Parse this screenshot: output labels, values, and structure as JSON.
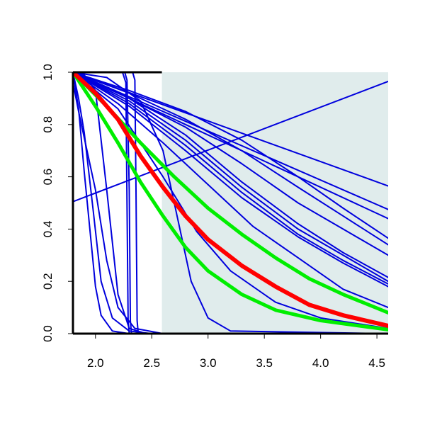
{
  "chart_data": {
    "type": "line",
    "title": "",
    "xlabel": "",
    "ylabel": "",
    "xlim": [
      1.8,
      4.6
    ],
    "ylim": [
      0.0,
      1.0
    ],
    "x_ticks": [
      2.0,
      2.5,
      3.0,
      3.5,
      4.0,
      4.5
    ],
    "x_tick_labels": [
      "2.0",
      "2.5",
      "3.0",
      "3.5",
      "4.0",
      "4.5"
    ],
    "y_ticks": [
      0.0,
      0.2,
      0.4,
      0.6,
      0.8,
      1.0
    ],
    "y_tick_labels": [
      "0.0",
      "0.2",
      "0.4",
      "0.6",
      "0.8",
      "1.0"
    ],
    "grid": false,
    "legend": "none",
    "shaded_region": {
      "x": [
        2.59,
        4.6
      ],
      "y": [
        0.0,
        1.0
      ],
      "color": "#e0ecec"
    },
    "colors": {
      "blue": "#0000dd",
      "red": "#ff0000",
      "green": "#00ee00",
      "axis": "#000000"
    },
    "series": [
      {
        "color": "#0000dd",
        "width": 2,
        "points": [
          [
            1.8,
            0.505
          ],
          [
            4.6,
            0.965
          ]
        ]
      },
      {
        "color": "#0000dd",
        "width": 2,
        "points": [
          [
            1.8,
            1.0
          ],
          [
            4.6,
            0.565
          ]
        ]
      },
      {
        "color": "#0000dd",
        "width": 2,
        "points": [
          [
            1.8,
            1.0
          ],
          [
            4.6,
            0.475
          ]
        ]
      },
      {
        "color": "#0000dd",
        "width": 2,
        "points": [
          [
            1.8,
            1.0
          ],
          [
            4.6,
            0.44
          ]
        ]
      },
      {
        "color": "#0000dd",
        "width": 2,
        "points": [
          [
            1.8,
            1.0
          ],
          [
            2.3,
            0.93
          ],
          [
            2.8,
            0.85
          ],
          [
            3.3,
            0.74
          ],
          [
            3.8,
            0.6
          ],
          [
            4.2,
            0.48
          ],
          [
            4.6,
            0.365
          ]
        ]
      },
      {
        "color": "#0000dd",
        "width": 2,
        "points": [
          [
            1.8,
            1.0
          ],
          [
            2.3,
            0.92
          ],
          [
            2.8,
            0.82
          ],
          [
            3.3,
            0.7
          ],
          [
            3.8,
            0.56
          ],
          [
            4.2,
            0.45
          ],
          [
            4.6,
            0.34
          ]
        ]
      },
      {
        "color": "#0000dd",
        "width": 2,
        "points": [
          [
            1.8,
            1.0
          ],
          [
            2.3,
            0.9
          ],
          [
            2.8,
            0.79
          ],
          [
            3.3,
            0.65
          ],
          [
            3.8,
            0.5
          ],
          [
            4.2,
            0.4
          ],
          [
            4.6,
            0.3
          ]
        ]
      },
      {
        "color": "#0000dd",
        "width": 2,
        "points": [
          [
            1.8,
            1.0
          ],
          [
            2.3,
            0.9
          ],
          [
            2.8,
            0.76
          ],
          [
            3.3,
            0.58
          ],
          [
            3.8,
            0.42
          ],
          [
            4.2,
            0.31
          ],
          [
            4.6,
            0.215
          ]
        ]
      },
      {
        "color": "#0000dd",
        "width": 2,
        "points": [
          [
            1.8,
            1.0
          ],
          [
            2.3,
            0.89
          ],
          [
            2.8,
            0.74
          ],
          [
            3.3,
            0.56
          ],
          [
            3.8,
            0.4
          ],
          [
            4.2,
            0.3
          ],
          [
            4.6,
            0.2
          ]
        ]
      },
      {
        "color": "#0000dd",
        "width": 2,
        "points": [
          [
            1.8,
            1.0
          ],
          [
            2.3,
            0.88
          ],
          [
            2.8,
            0.72
          ],
          [
            3.3,
            0.54
          ],
          [
            3.8,
            0.38
          ],
          [
            4.2,
            0.28
          ],
          [
            4.6,
            0.19
          ]
        ]
      },
      {
        "color": "#0000dd",
        "width": 2,
        "points": [
          [
            1.8,
            1.0
          ],
          [
            2.3,
            0.87
          ],
          [
            2.8,
            0.7
          ],
          [
            3.3,
            0.52
          ],
          [
            3.8,
            0.37
          ],
          [
            4.2,
            0.27
          ],
          [
            4.6,
            0.18
          ]
        ]
      },
      {
        "color": "#0000dd",
        "width": 2,
        "points": [
          [
            1.8,
            1.0
          ],
          [
            2.2,
            0.88
          ],
          [
            2.6,
            0.73
          ],
          [
            3.0,
            0.57
          ],
          [
            3.4,
            0.41
          ],
          [
            3.8,
            0.29
          ],
          [
            4.2,
            0.17
          ],
          [
            4.6,
            0.1
          ]
        ]
      },
      {
        "color": "#0000dd",
        "width": 2,
        "points": [
          [
            1.8,
            1.0
          ],
          [
            2.2,
            0.86
          ],
          [
            2.6,
            0.6
          ],
          [
            2.9,
            0.39
          ],
          [
            3.2,
            0.24
          ],
          [
            3.6,
            0.12
          ],
          [
            4.0,
            0.06
          ],
          [
            4.6,
            0.02
          ]
        ]
      },
      {
        "color": "#0000dd",
        "width": 2,
        "points": [
          [
            1.8,
            1.0
          ],
          [
            2.1,
            0.98
          ],
          [
            2.4,
            0.89
          ],
          [
            2.6,
            0.7
          ],
          [
            2.75,
            0.4
          ],
          [
            2.85,
            0.2
          ],
          [
            3.0,
            0.06
          ],
          [
            3.2,
            0.01
          ],
          [
            4.6,
            0.0
          ]
        ]
      },
      {
        "color": "#0000dd",
        "width": 2,
        "points": [
          [
            1.8,
            1.0
          ],
          [
            1.85,
            0.86
          ],
          [
            1.9,
            0.62
          ],
          [
            1.95,
            0.4
          ],
          [
            2.0,
            0.18
          ],
          [
            2.05,
            0.07
          ],
          [
            2.15,
            0.01
          ],
          [
            2.3,
            0.0
          ]
        ]
      },
      {
        "color": "#0000dd",
        "width": 2,
        "points": [
          [
            1.8,
            1.0
          ],
          [
            1.85,
            0.9
          ],
          [
            1.9,
            0.77
          ],
          [
            1.98,
            0.47
          ],
          [
            2.05,
            0.2
          ],
          [
            2.15,
            0.06
          ],
          [
            2.3,
            0.01
          ],
          [
            2.5,
            0.0
          ]
        ]
      },
      {
        "color": "#0000dd",
        "width": 2,
        "points": [
          [
            1.8,
            0.96
          ],
          [
            1.85,
            0.85
          ],
          [
            1.9,
            0.75
          ],
          [
            2.0,
            0.55
          ],
          [
            2.1,
            0.28
          ],
          [
            2.2,
            0.1
          ],
          [
            2.35,
            0.02
          ],
          [
            2.6,
            0.0
          ]
        ]
      },
      {
        "color": "#0000dd",
        "width": 2,
        "points": [
          [
            1.8,
            1.0
          ],
          [
            1.9,
            0.99
          ],
          [
            2.0,
            0.93
          ],
          [
            2.1,
            0.55
          ],
          [
            2.2,
            0.15
          ],
          [
            2.3,
            0.02
          ],
          [
            2.45,
            0.0
          ]
        ]
      },
      {
        "color": "#0000dd",
        "width": 2,
        "points": [
          [
            1.85,
            1.0
          ],
          [
            2.24,
            1.0
          ],
          [
            2.27,
            0.96
          ],
          [
            2.28,
            0.5
          ],
          [
            2.29,
            0.05
          ],
          [
            2.3,
            0.0
          ]
        ]
      },
      {
        "color": "#0000dd",
        "width": 2,
        "points": [
          [
            1.85,
            1.0
          ],
          [
            2.26,
            1.0
          ],
          [
            2.28,
            0.97
          ],
          [
            2.3,
            0.55
          ],
          [
            2.31,
            0.05
          ],
          [
            2.32,
            0.0
          ]
        ]
      },
      {
        "color": "#0000dd",
        "width": 2,
        "points": [
          [
            2.25,
            1.0
          ],
          [
            2.33,
            1.0
          ],
          [
            2.35,
            0.97
          ],
          [
            2.36,
            0.55
          ],
          [
            2.37,
            0.05
          ],
          [
            2.38,
            0.0
          ]
        ]
      },
      {
        "color": "#00ee00",
        "width": 5,
        "points": [
          [
            1.8,
            1.0
          ],
          [
            2.1,
            0.87
          ],
          [
            2.4,
            0.73
          ],
          [
            2.7,
            0.6
          ],
          [
            3.0,
            0.48
          ],
          [
            3.3,
            0.38
          ],
          [
            3.6,
            0.29
          ],
          [
            3.9,
            0.21
          ],
          [
            4.2,
            0.15
          ],
          [
            4.6,
            0.08
          ]
        ]
      },
      {
        "color": "#00ee00",
        "width": 5,
        "points": [
          [
            1.8,
            1.0
          ],
          [
            2.0,
            0.87
          ],
          [
            2.2,
            0.73
          ],
          [
            2.4,
            0.58
          ],
          [
            2.6,
            0.45
          ],
          [
            2.8,
            0.33
          ],
          [
            3.0,
            0.24
          ],
          [
            3.3,
            0.15
          ],
          [
            3.6,
            0.09
          ],
          [
            4.0,
            0.05
          ],
          [
            4.6,
            0.015
          ]
        ]
      },
      {
        "color": "#ff0000",
        "width": 6,
        "points": [
          [
            1.8,
            1.0
          ],
          [
            2.0,
            0.92
          ],
          [
            2.2,
            0.82
          ],
          [
            2.4,
            0.68
          ],
          [
            2.6,
            0.56
          ],
          [
            2.8,
            0.45
          ],
          [
            3.0,
            0.36
          ],
          [
            3.3,
            0.26
          ],
          [
            3.6,
            0.18
          ],
          [
            3.9,
            0.11
          ],
          [
            4.2,
            0.07
          ],
          [
            4.6,
            0.03
          ]
        ]
      }
    ]
  }
}
